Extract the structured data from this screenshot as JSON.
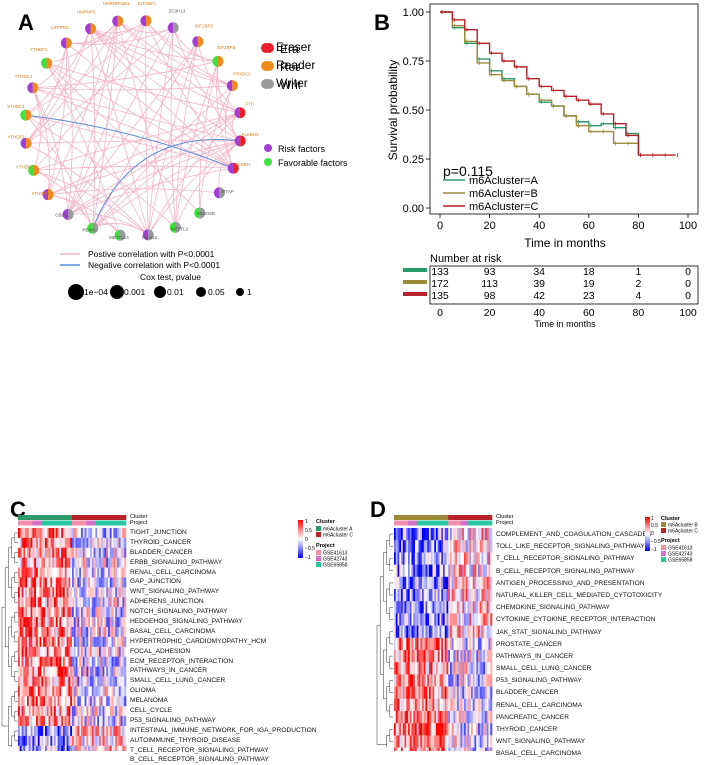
{
  "panels": {
    "a": "A",
    "b": "B",
    "c": "C",
    "d": "D"
  },
  "network": {
    "nodes": [
      {
        "label": "IGF2BP1",
        "type": "Reader",
        "factor": "Risk"
      },
      {
        "label": "ZC3H13",
        "type": "Writer",
        "factor": "Risk"
      },
      {
        "label": "IGF2BP2",
        "type": "Reader",
        "factor": "Risk"
      },
      {
        "label": "IGF2BP3",
        "type": "Reader",
        "factor": "Favorable"
      },
      {
        "label": "YTHDC2",
        "type": "Reader",
        "factor": "Risk"
      },
      {
        "label": "FTO",
        "type": "Eraser",
        "factor": "Risk"
      },
      {
        "label": "ALKBH5",
        "type": "Eraser",
        "factor": "Risk"
      },
      {
        "label": "ALKBH",
        "type": "Eraser",
        "factor": "Risk"
      },
      {
        "label": "WTAP",
        "type": "Writer",
        "factor": "Risk"
      },
      {
        "label": "RBM15B",
        "type": "Writer",
        "factor": "Favorable"
      },
      {
        "label": "METTL3",
        "type": "Writer",
        "factor": "Favorable"
      },
      {
        "label": "RBM15",
        "type": "Writer",
        "factor": "Risk"
      },
      {
        "label": "METTL14",
        "type": "Writer",
        "factor": "Favorable"
      },
      {
        "label": "RBMX",
        "type": "Writer",
        "factor": "Favorable"
      },
      {
        "label": "CBLL1",
        "type": "Writer",
        "factor": "Risk"
      },
      {
        "label": "YTHDF3",
        "type": "Reader",
        "factor": "Risk"
      },
      {
        "label": "YTHDF2",
        "type": "Reader",
        "factor": "Favorable"
      },
      {
        "label": "YTHDF1",
        "type": "Reader",
        "factor": "Risk"
      },
      {
        "label": "YTHDC1",
        "type": "Reader",
        "factor": "Favorable"
      },
      {
        "label": "YTHDC1",
        "type": "Reader",
        "factor": "Risk"
      },
      {
        "label": "YTHDF1",
        "type": "Reader",
        "factor": "Favorable"
      },
      {
        "label": "LRPPRC",
        "type": "Reader",
        "factor": "Risk"
      },
      {
        "label": "HNRNPC",
        "type": "Reader",
        "factor": "Risk"
      },
      {
        "label": "HNRNPA2B1",
        "type": "Reader",
        "factor": "Risk"
      }
    ],
    "legend_type": [
      {
        "label": "Eraser",
        "color": "#e8202a"
      },
      {
        "label": "Reader",
        "color": "#f08a1c"
      },
      {
        "label": "Writer",
        "color": "#9a9a9a"
      }
    ],
    "legend_factor": [
      {
        "label": "Risk factors",
        "color": "#a43bd6"
      },
      {
        "label": "Favorable factors",
        "color": "#3ce23c"
      }
    ],
    "legend_corr": [
      {
        "label": "Postive correlation with P<0.0001",
        "color": "#f2b4c8"
      },
      {
        "label": "Negative correlation with P<0.0001",
        "color": "#5a8fd8"
      }
    ],
    "cox_title": "Cox test, pvalue",
    "cox_sizes": [
      "1e−04",
      "0.001",
      "0.01",
      "0.05",
      "1"
    ]
  },
  "survival": {
    "ylabel": "Survival probability",
    "xlabel": "Time in months",
    "pvalue": "p=0.115",
    "xticks": [
      "0",
      "20",
      "40",
      "60",
      "80",
      "100"
    ],
    "yticks": [
      "0.00",
      "0.25",
      "0.50",
      "0.75",
      "1.00"
    ],
    "risk_title": "Number at risk",
    "risk_xlabel": "Time in months",
    "series": [
      {
        "name": "m6Acluster=A",
        "color": "#2a9a6a",
        "risk": [
          "133",
          "93",
          "34",
          "18",
          "1",
          "0"
        ]
      },
      {
        "name": "m6Acluster=B",
        "color": "#9a8a3a",
        "risk": [
          "172",
          "113",
          "39",
          "19",
          "2",
          "0"
        ]
      },
      {
        "name": "m6Acluster=C",
        "color": "#b8222a",
        "risk": [
          "135",
          "98",
          "42",
          "23",
          "4",
          "0"
        ]
      }
    ]
  },
  "chart_data": {
    "type": "line",
    "title": "",
    "xlabel": "Time in months",
    "ylabel": "Survival probability",
    "xlim": [
      0,
      100
    ],
    "ylim": [
      0,
      1
    ],
    "x": [
      0,
      5,
      10,
      15,
      20,
      25,
      30,
      35,
      40,
      45,
      50,
      55,
      60,
      65,
      70,
      75,
      80,
      85,
      90,
      95
    ],
    "series": [
      {
        "name": "m6Acluster=A",
        "values": [
          1.0,
          0.92,
          0.84,
          0.76,
          0.7,
          0.66,
          0.62,
          0.58,
          0.54,
          0.52,
          0.47,
          0.44,
          0.42,
          0.43,
          0.41,
          0.38,
          0.27,
          null,
          null,
          null
        ]
      },
      {
        "name": "m6Acluster=B",
        "values": [
          1.0,
          0.93,
          0.85,
          0.74,
          0.68,
          0.65,
          0.62,
          0.58,
          0.55,
          0.52,
          0.47,
          0.42,
          0.39,
          0.39,
          0.33,
          0.33,
          0.27,
          null,
          null,
          null
        ]
      },
      {
        "name": "m6Acluster=C",
        "values": [
          1.0,
          0.96,
          0.91,
          0.84,
          0.79,
          0.75,
          0.72,
          0.66,
          0.62,
          0.6,
          0.57,
          0.55,
          0.53,
          0.48,
          0.43,
          0.37,
          0.27,
          0.27,
          0.27,
          0.27
        ]
      }
    ]
  },
  "heatmap_c": {
    "annot_labels": [
      "Cluster",
      "Project"
    ],
    "rows": [
      "TIGHT_JUNCTION",
      "THYROID_CANCER",
      "BLADDER_CANCER",
      "ERBB_SIGNALING_PATHWAY",
      "RENAL_CELL_CARCINOMA",
      "GAP_JUNCTION",
      "WNT_SIGNALING_PATHWAY",
      "ADHERENS_JUNCTION",
      "NOTCH_SIGNALING_PATHWAY",
      "HEDGEHOG_SIGNALING_PATHWAY",
      "BASAL_CELL_CARCINOMA",
      "HYPERTROPHIC_CARDIOMYOPATHY_HCM",
      "FOCAL_ADHESION",
      "ECM_RECEPTOR_INTERACTION",
      "PATHWAYS_IN_CANCER",
      "SMALL_CELL_LUNG_CANCER",
      "GLIOMA",
      "MELANOMA",
      "CELL_CYCLE",
      "P53_SIGNALING_PATHWAY",
      "INTESTINAL_IMMUNE_NETWORK_FOR_IGA_PRODUCTION",
      "AUTOIMMUNE_THYROID_DISEASE",
      "T_CELL_RECEPTOR_SIGNALING_PATHWAY",
      "B_CELL_RECEPTOR_SIGNALING_PATHWAY"
    ],
    "scale": [
      "1",
      "0.5",
      "0",
      "−0.5",
      "−1"
    ],
    "cluster_title": "Cluster",
    "clusters": [
      {
        "label": "m6Acluster A",
        "color": "#2a9a6a"
      },
      {
        "label": "m6Acluster C",
        "color": "#b8222a"
      }
    ],
    "project_title": "Project",
    "projects": [
      {
        "label": "GSE41613",
        "color": "#f58fa8"
      },
      {
        "label": "GSE42743",
        "color": "#d870c8"
      },
      {
        "label": "GSE65858",
        "color": "#2ac8a0"
      }
    ]
  },
  "heatmap_d": {
    "annot_labels": [
      "Cluster",
      "Project"
    ],
    "rows": [
      "COMPLEMENT_AND_COAGULATION_CASCADES",
      "TOLL_LIKE_RECEPTOR_SIGNALING_PATHWAY",
      "T_CELL_RECEPTOR_SIGNALING_PATHWAY",
      "B_CELL_RECEPTOR_SIGNALING_PATHWAY",
      "ANTIGEN_PROCESSING_AND_PRESENTATION",
      "NATURAL_KILLER_CELL_MEDIATED_CYTOTOXICITY",
      "CHEMOKINE_SIGNALING_PATHWAY",
      "CYTOKINE_CYTOKINE_RECEPTOR_INTERACTION",
      "JAK_STAT_SIGNALING_PATHWAY",
      "PROSTATE_CANCER",
      "PATHWAYS_IN_CANCER",
      "SMALL_CELL_LUNG_CANCER",
      "P53_SIGNALING_PATHWAY",
      "BLADDER_CANCER",
      "RENAL_CELL_CARCINOMA",
      "PANCREATIC_CANCER",
      "THYROID_CANCER",
      "WNT_SIGNALING_PATHWAY",
      "BASAL_CELL_CARCINOMA"
    ],
    "scale": [
      "1",
      "0.5",
      "0",
      "−0.5",
      "−1"
    ],
    "cluster_title": "Cluster",
    "clusters": [
      {
        "label": "m6Acluster B",
        "color": "#9a8a3a"
      },
      {
        "label": "m6Acluster C",
        "color": "#b8222a"
      }
    ],
    "project_title": "Project",
    "projects": [
      {
        "label": "GSE41613",
        "color": "#f58fa8"
      },
      {
        "label": "GSE42743",
        "color": "#d870c8"
      },
      {
        "label": "GSE65858",
        "color": "#2ac8a0"
      }
    ]
  }
}
